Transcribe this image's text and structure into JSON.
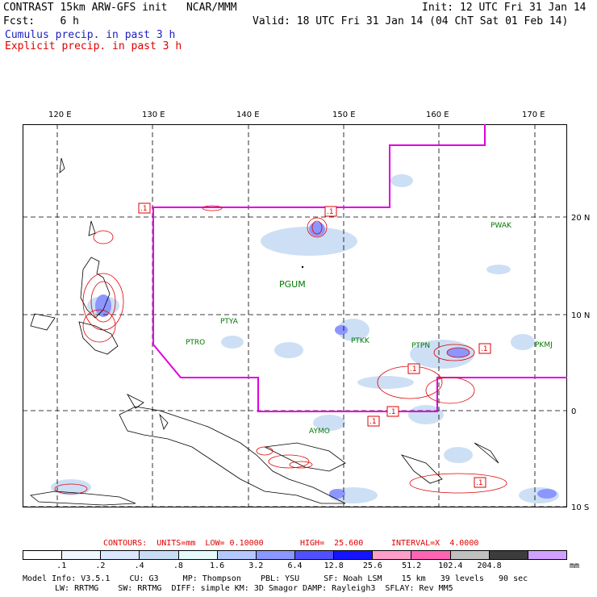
{
  "header": {
    "title_line": "CONTRAST 15km ARW-GFS init   NCAR/MMM",
    "init": "Init: 12 UTC Fri 31 Jan 14",
    "fcst_label": "Fcst:    6 h",
    "valid": "Valid: 18 UTC Fri 31 Jan 14 (04 ChT Sat 01 Feb 14)",
    "legend_cumulus": "Cumulus precip. in past 3 h",
    "legend_explicit": "Explicit precip. in past 3 h"
  },
  "colors": {
    "cumulus_text": "#2020c0",
    "explicit_text": "#e00000",
    "boundary": "#e000e0",
    "contour": "#e00000",
    "station": "#007a00"
  },
  "map": {
    "lon_labels": [
      "120 E",
      "130 E",
      "140 E",
      "150 E",
      "160 E",
      "170 E"
    ],
    "lat_labels": [
      "20 N",
      "10 N",
      "0",
      "10 S"
    ],
    "stations": [
      "PGUM",
      "PWAK",
      "PTYA",
      "PTRO",
      "PTKK",
      "PTPN",
      "PKMJ",
      "AYMO"
    ],
    "contour_value_labels": [
      ".1",
      ".1",
      ".1",
      ".1",
      ".1",
      ".1",
      ".1"
    ]
  },
  "contours_info": {
    "contours": "CONTOURS:  UNITS=mm  LOW= 0.10000",
    "high": "HIGH=  25.600",
    "interval": "INTERVAL=X  4.0000"
  },
  "scale": {
    "colors": [
      "#ffffff",
      "#f0f6ff",
      "#dce8ff",
      "#c8dcf4",
      "#e6fafa",
      "#b4c8ff",
      "#8c96ff",
      "#5050ff",
      "#1414ff",
      "#ff9ec8",
      "#ff64b4",
      "#c0c0c0",
      "#3c3c3c",
      "#d2a0ff"
    ],
    "labels": [
      ".1",
      ".2",
      ".4",
      ".8",
      "1.6",
      "3.2",
      "6.4",
      "12.8",
      "25.6",
      "51.2",
      "102.4",
      "204.8"
    ],
    "unit": "mm"
  },
  "footer": {
    "line1": "Model Info: V3.5.1    CU: G3     MP: Thompson    PBL: YSU     SF: Noah LSM    15 km   39 levels   90 sec",
    "line2": "LW: RRTMG    SW: RRTMG  DIFF: simple KM: 3D Smagor DAMP: Rayleigh3  SFLAY: Rev MM5"
  }
}
